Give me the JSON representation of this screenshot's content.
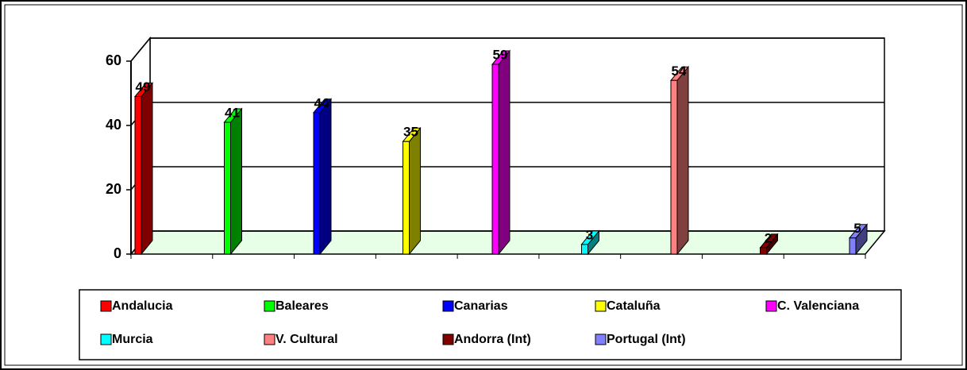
{
  "chart_data": {
    "type": "bar3d",
    "categories": [
      "Andalucia",
      "Baleares",
      "Canarias",
      "Cataluña",
      "C. Valenciana",
      "Murcia",
      "V. Cultural",
      "Andorra (Int)",
      "Portugal (Int)"
    ],
    "values": [
      49,
      41,
      44,
      35,
      59,
      3,
      54,
      2,
      5
    ],
    "colors": [
      "#ff0000",
      "#00ff00",
      "#0000ff",
      "#ffff00",
      "#ff00ff",
      "#00ffff",
      "#ff8080",
      "#800000",
      "#8080ff"
    ],
    "ylim": [
      0,
      60
    ],
    "yticks": [
      0,
      20,
      40,
      60
    ],
    "grid": true,
    "legend": "bottom"
  }
}
